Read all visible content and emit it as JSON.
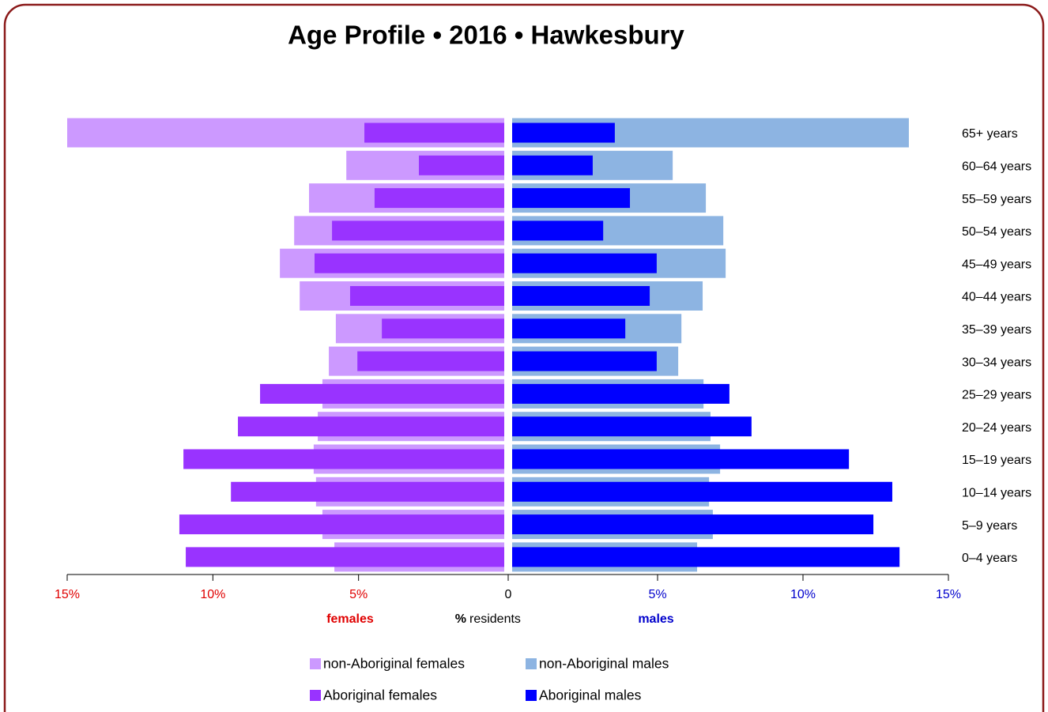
{
  "chart_data": {
    "type": "pyramid",
    "title": "Age Profile  •  2016  •  Hawkesbury",
    "categories": [
      "65+ years",
      "60–64 years",
      "55–59 years",
      "50–54 years",
      "45–49 years",
      "40–44 years",
      "35–39 years",
      "30–34 years",
      "25–29 years",
      "20–24 years",
      "15–19 years",
      "10–14 years",
      "5–9 years",
      "0–4 years"
    ],
    "series": [
      {
        "name": "non-Aboriginal females",
        "side": "left",
        "color": "#cc99ff",
        "values": [
          15.0,
          5.42,
          6.7,
          7.21,
          7.7,
          7.02,
          5.78,
          6.02,
          6.24,
          6.4,
          6.54,
          6.46,
          6.24,
          5.83
        ]
      },
      {
        "name": "Aboriginal females",
        "side": "left",
        "color": "#9933ff",
        "values": [
          4.8,
          2.93,
          4.45,
          5.91,
          6.51,
          5.29,
          4.2,
          5.04,
          8.38,
          9.14,
          11.01,
          9.38,
          11.15,
          10.93
        ]
      },
      {
        "name": "non-Aboriginal males",
        "side": "right",
        "color": "#8db4e2",
        "values": [
          13.64,
          5.52,
          6.66,
          7.26,
          7.34,
          6.55,
          5.82,
          5.71,
          6.58,
          6.82,
          7.15,
          6.77,
          6.9,
          6.36
        ]
      },
      {
        "name": "Aboriginal males",
        "side": "right",
        "color": "#0000ff",
        "values": [
          3.53,
          2.77,
          4.05,
          3.13,
          4.97,
          4.73,
          3.89,
          4.97,
          7.47,
          8.23,
          11.58,
          13.07,
          12.42,
          13.32
        ]
      }
    ],
    "xlim": [
      0,
      15
    ],
    "left_xticks": [
      {
        "value": 15,
        "label": "15%"
      },
      {
        "value": 10,
        "label": "10%"
      },
      {
        "value": 5,
        "label": "5%"
      }
    ],
    "zero_tick": 0,
    "right_xticks": [
      {
        "value": 5,
        "label": "5%"
      },
      {
        "value": 10,
        "label": "10%"
      },
      {
        "value": 15,
        "label": "15%"
      }
    ],
    "left_label": "females",
    "left_color": "#e00000",
    "right_label": "males",
    "right_color": "#0000cc",
    "x_label_symbol": "%",
    "x_label": "residents"
  }
}
